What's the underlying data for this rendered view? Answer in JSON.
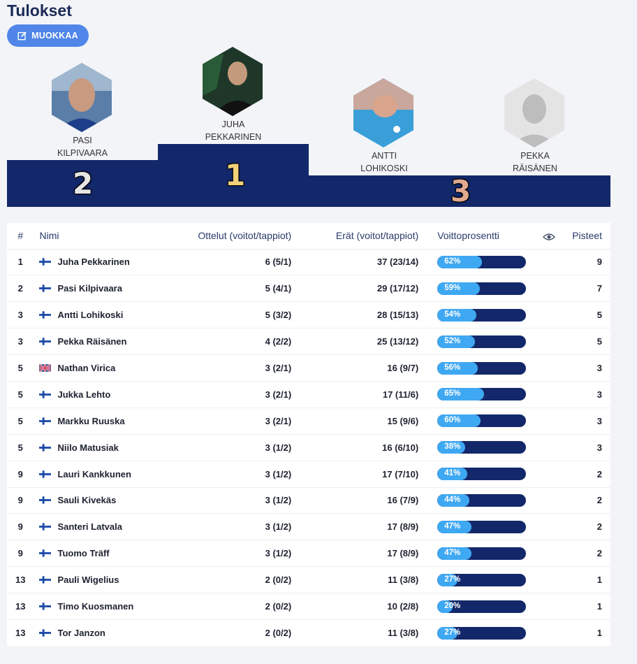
{
  "header": {
    "title": "Tulokset",
    "edit_label": "MUOKKAA"
  },
  "podium": {
    "first": {
      "rank": "1",
      "name_line1": "JUHA",
      "name_line2": "PEKKARINEN"
    },
    "second": {
      "rank": "2",
      "name_line1": "PASI",
      "name_line2": "KILPIVAARA"
    },
    "third": {
      "rank": "3"
    },
    "third_a": {
      "name_line1": "ANTTI",
      "name_line2": "LOHIKOSKI"
    },
    "third_b": {
      "name_line1": "PEKKA",
      "name_line2": "RÄISÄNEN"
    }
  },
  "table": {
    "headers": {
      "rank": "#",
      "name": "Nimi",
      "matches": "Ottelut (voitot/tappiot)",
      "frames": "Erät (voitot/tappiot)",
      "pct": "Voittoprosentti",
      "visibility_icon": "eye-icon",
      "points": "Pisteet"
    },
    "rows": [
      {
        "rank": "1",
        "flag": "fi",
        "name": "Juha Pekkarinen",
        "matches": "6 (5/1)",
        "frames": "37 (23/14)",
        "pct": 62,
        "pct_label": "62%",
        "points": "9"
      },
      {
        "rank": "2",
        "flag": "fi",
        "name": "Pasi Kilpivaara",
        "matches": "5 (4/1)",
        "frames": "29 (17/12)",
        "pct": 59,
        "pct_label": "59%",
        "points": "7"
      },
      {
        "rank": "3",
        "flag": "fi",
        "name": "Antti Lohikoski",
        "matches": "5 (3/2)",
        "frames": "28 (15/13)",
        "pct": 54,
        "pct_label": "54%",
        "points": "5"
      },
      {
        "rank": "3",
        "flag": "fi",
        "name": "Pekka Räisänen",
        "matches": "4 (2/2)",
        "frames": "25 (13/12)",
        "pct": 52,
        "pct_label": "52%",
        "points": "5"
      },
      {
        "rank": "5",
        "flag": "gb",
        "name": "Nathan Virica",
        "matches": "3 (2/1)",
        "frames": "16 (9/7)",
        "pct": 56,
        "pct_label": "56%",
        "points": "3"
      },
      {
        "rank": "5",
        "flag": "fi",
        "name": "Jukka Lehto",
        "matches": "3 (2/1)",
        "frames": "17 (11/6)",
        "pct": 65,
        "pct_label": "65%",
        "points": "3"
      },
      {
        "rank": "5",
        "flag": "fi",
        "name": "Markku Ruuska",
        "matches": "3 (2/1)",
        "frames": "15 (9/6)",
        "pct": 60,
        "pct_label": "60%",
        "points": "3"
      },
      {
        "rank": "5",
        "flag": "fi",
        "name": "Niilo Matusiak",
        "matches": "3 (1/2)",
        "frames": "16 (6/10)",
        "pct": 38,
        "pct_label": "38%",
        "points": "3"
      },
      {
        "rank": "9",
        "flag": "fi",
        "name": "Lauri Kankkunen",
        "matches": "3 (1/2)",
        "frames": "17 (7/10)",
        "pct": 41,
        "pct_label": "41%",
        "points": "2"
      },
      {
        "rank": "9",
        "flag": "fi",
        "name": "Sauli Kivekäs",
        "matches": "3 (1/2)",
        "frames": "16 (7/9)",
        "pct": 44,
        "pct_label": "44%",
        "points": "2"
      },
      {
        "rank": "9",
        "flag": "fi",
        "name": "Santeri Latvala",
        "matches": "3 (1/2)",
        "frames": "17 (8/9)",
        "pct": 47,
        "pct_label": "47%",
        "points": "2"
      },
      {
        "rank": "9",
        "flag": "fi",
        "name": "Tuomo Träff",
        "matches": "3 (1/2)",
        "frames": "17 (8/9)",
        "pct": 47,
        "pct_label": "47%",
        "points": "2"
      },
      {
        "rank": "13",
        "flag": "fi",
        "name": "Pauli Wigelius",
        "matches": "2 (0/2)",
        "frames": "11 (3/8)",
        "pct": 27,
        "pct_label": "27%",
        "points": "1"
      },
      {
        "rank": "13",
        "flag": "fi",
        "name": "Timo Kuosmanen",
        "matches": "2 (0/2)",
        "frames": "10 (2/8)",
        "pct": 20,
        "pct_label": "20%",
        "points": "1"
      },
      {
        "rank": "13",
        "flag": "fi",
        "name": "Tor Janzon",
        "matches": "2 (0/2)",
        "frames": "11 (3/8)",
        "pct": 27,
        "pct_label": "27%",
        "points": "1"
      }
    ]
  },
  "colors": {
    "podium": "#13286a",
    "accent": "#4f86e8",
    "bar_fill": "#3fa8f2",
    "gold": "#f2d27a",
    "silver": "#e6e6e6",
    "bronze": "#e0a98f"
  }
}
